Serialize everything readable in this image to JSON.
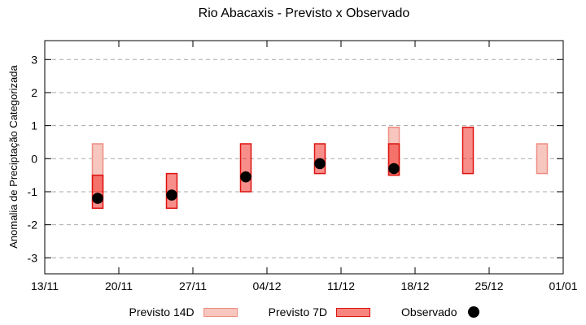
{
  "chart_data": {
    "type": "box",
    "title": "Rio Abacaxis - Previsto x Observado",
    "ylabel": "Anomalia de Preciptação Categorizada",
    "ylim": [
      -3.55,
      3.55
    ],
    "yticks": [
      3,
      2,
      1,
      0,
      -1,
      -2,
      -3
    ],
    "xticks": [
      "13/11",
      "20/11",
      "27/11",
      "04/12",
      "11/12",
      "18/12",
      "25/12",
      "01/01"
    ],
    "x_span_days": 49,
    "grid": "horizontal-dashed",
    "legend": [
      {
        "label": "Previsto 14D",
        "fill": "#f6c6bf",
        "border": "#ef8e82"
      },
      {
        "label": "Previsto 7D",
        "fill": "#f8857d",
        "border": "#dd1310"
      },
      {
        "label": "Observado",
        "fill": "#000000"
      }
    ],
    "points": [
      {
        "date": "18/11",
        "day": 5,
        "previsto14": [
          0.45,
          -1.0
        ],
        "previsto7": [
          -0.5,
          -1.5
        ],
        "observado": -1.2
      },
      {
        "date": "25/11",
        "day": 12,
        "previsto7": [
          -0.45,
          -1.5
        ],
        "observado": -1.1
      },
      {
        "date": "02/12",
        "day": 19,
        "previsto7": [
          0.45,
          -1.0
        ],
        "observado": -0.55
      },
      {
        "date": "09/12",
        "day": 26,
        "previsto7": [
          0.45,
          -0.45
        ],
        "observado": -0.15
      },
      {
        "date": "16/12",
        "day": 33,
        "previsto14": [
          0.95,
          -0.5
        ],
        "previsto7": [
          0.45,
          -0.5
        ],
        "observado": -0.3
      },
      {
        "date": "23/12",
        "day": 40,
        "previsto7": [
          0.95,
          -0.45
        ]
      },
      {
        "date": "30/12",
        "day": 47,
        "previsto14": [
          0.45,
          -0.45
        ]
      }
    ],
    "colors": {
      "p14_fill": "#f6c6bf",
      "p14_border": "#ef8e82",
      "p7_fill": "rgba(242,30,22,0.5)",
      "p7_border": "#dd1310",
      "observed": "#000000",
      "grid": "#a8a8a8",
      "axis": "#000000"
    }
  }
}
